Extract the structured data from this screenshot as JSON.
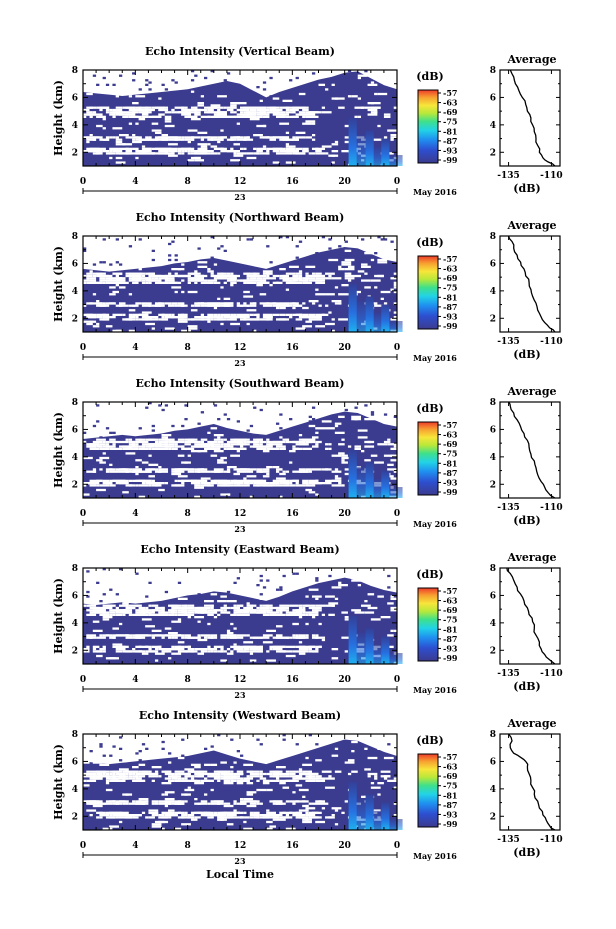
{
  "figure": {
    "x_label": "Local Time",
    "date_label": "May 2016",
    "day_label": "23"
  },
  "chart_data": [
    {
      "type": "heatmap",
      "title": "Echo Intensity (Vertical Beam)",
      "ylabel": "Height (km)",
      "xlabel": "Local Time",
      "x_ticks": [
        "0",
        "4",
        "8",
        "12",
        "16",
        "20",
        "0"
      ],
      "y_ticks": [
        "2",
        "4",
        "6",
        "8"
      ],
      "xlim": [
        0,
        24
      ],
      "ylim": [
        1,
        8
      ],
      "colorbar": {
        "unit": "(dB)",
        "ticks": [
          "-57",
          "-63",
          "-69",
          "-75",
          "-81",
          "-87",
          "-93",
          "-99"
        ]
      },
      "average": {
        "title": "Average",
        "xlabel": "(dB)",
        "x_ticks": [
          "-135",
          "-110"
        ],
        "y_ticks": [
          "2",
          "4",
          "6",
          "8"
        ],
        "xlim": [
          -140,
          -105
        ],
        "ylim": [
          1,
          8
        ],
        "profile": [
          [
            -108,
            1.0
          ],
          [
            -112,
            1.3
          ],
          [
            -115,
            1.6
          ],
          [
            -117,
            2.0
          ],
          [
            -118,
            2.5
          ],
          [
            -119,
            3.0
          ],
          [
            -120,
            3.5
          ],
          [
            -121,
            4.0
          ],
          [
            -122,
            4.5
          ],
          [
            -124,
            5.0
          ],
          [
            -125,
            5.5
          ],
          [
            -127,
            6.0
          ],
          [
            -129,
            6.5
          ],
          [
            -131,
            7.0
          ],
          [
            -132,
            7.5
          ],
          [
            -134,
            8.0
          ]
        ]
      },
      "cloud_top_km": [
        6.4,
        6.3,
        6.2,
        6.1,
        6.2,
        6.3,
        6.4,
        6.5,
        6.6,
        6.8,
        7.0,
        7.2,
        7.0,
        6.5,
        6.0,
        6.4,
        6.7,
        7.0,
        7.3,
        7.5,
        7.8,
        7.9,
        7.4,
        6.9,
        6.6
      ]
    },
    {
      "type": "heatmap",
      "title": "Echo Intensity (Northward Beam)",
      "ylabel": "Height (km)",
      "xlabel": "Local Time",
      "x_ticks": [
        "0",
        "4",
        "8",
        "12",
        "16",
        "20",
        "0"
      ],
      "y_ticks": [
        "2",
        "4",
        "6",
        "8"
      ],
      "xlim": [
        0,
        24
      ],
      "ylim": [
        1,
        8
      ],
      "colorbar": {
        "unit": "(dB)",
        "ticks": [
          "-57",
          "-63",
          "-69",
          "-75",
          "-81",
          "-87",
          "-93",
          "-99"
        ]
      },
      "average": {
        "title": "Average",
        "xlabel": "(dB)",
        "x_ticks": [
          "-135",
          "-110"
        ],
        "y_ticks": [
          "2",
          "4",
          "6",
          "8"
        ],
        "xlim": [
          -140,
          -105
        ],
        "ylim": [
          1,
          8
        ],
        "profile": [
          [
            -108,
            1.0
          ],
          [
            -111,
            1.3
          ],
          [
            -114,
            1.7
          ],
          [
            -116,
            2.1
          ],
          [
            -118,
            2.6
          ],
          [
            -119,
            3.1
          ],
          [
            -121,
            3.6
          ],
          [
            -122,
            4.1
          ],
          [
            -123,
            4.6
          ],
          [
            -125,
            5.1
          ],
          [
            -126,
            5.6
          ],
          [
            -128,
            6.1
          ],
          [
            -130,
            6.6
          ],
          [
            -132,
            7.1
          ],
          [
            -133,
            7.6
          ],
          [
            -135,
            8.0
          ]
        ]
      },
      "cloud_top_km": [
        5.6,
        5.5,
        5.4,
        5.5,
        5.6,
        5.7,
        5.8,
        6.0,
        6.1,
        6.3,
        6.4,
        6.2,
        6.0,
        5.8,
        5.6,
        5.9,
        6.2,
        6.5,
        6.8,
        7.0,
        7.2,
        7.1,
        6.7,
        6.3,
        6.1
      ]
    },
    {
      "type": "heatmap",
      "title": "Echo Intensity (Southward Beam)",
      "ylabel": "Height (km)",
      "xlabel": "Local Time",
      "x_ticks": [
        "0",
        "4",
        "8",
        "12",
        "16",
        "20",
        "0"
      ],
      "y_ticks": [
        "2",
        "4",
        "6",
        "8"
      ],
      "xlim": [
        0,
        24
      ],
      "ylim": [
        1,
        8
      ],
      "colorbar": {
        "unit": "(dB)",
        "ticks": [
          "-57",
          "-63",
          "-69",
          "-75",
          "-81",
          "-87",
          "-93",
          "-99"
        ]
      },
      "average": {
        "title": "Average",
        "xlabel": "(dB)",
        "x_ticks": [
          "-135",
          "-110"
        ],
        "y_ticks": [
          "2",
          "4",
          "6",
          "8"
        ],
        "xlim": [
          -140,
          -105
        ],
        "ylim": [
          1,
          8
        ],
        "profile": [
          [
            -108,
            1.0
          ],
          [
            -112,
            1.4
          ],
          [
            -114,
            1.8
          ],
          [
            -116,
            2.2
          ],
          [
            -118,
            2.7
          ],
          [
            -119,
            3.2
          ],
          [
            -120,
            3.7
          ],
          [
            -122,
            4.2
          ],
          [
            -123,
            4.7
          ],
          [
            -124,
            5.2
          ],
          [
            -126,
            5.7
          ],
          [
            -128,
            6.2
          ],
          [
            -130,
            6.7
          ],
          [
            -132,
            7.2
          ],
          [
            -134,
            7.7
          ],
          [
            -135,
            8.0
          ]
        ]
      },
      "cloud_top_km": [
        5.3,
        5.4,
        5.5,
        5.6,
        5.5,
        5.6,
        5.7,
        5.9,
        6.0,
        6.2,
        6.4,
        6.1,
        5.9,
        5.7,
        5.6,
        5.9,
        6.2,
        6.5,
        6.8,
        7.1,
        7.3,
        7.2,
        6.8,
        6.4,
        6.2
      ]
    },
    {
      "type": "heatmap",
      "title": "Echo Intensity (Eastward Beam)",
      "ylabel": "Height (km)",
      "xlabel": "Local Time",
      "x_ticks": [
        "0",
        "4",
        "8",
        "12",
        "16",
        "20",
        "0"
      ],
      "y_ticks": [
        "2",
        "4",
        "6",
        "8"
      ],
      "xlim": [
        0,
        24
      ],
      "ylim": [
        1,
        8
      ],
      "colorbar": {
        "unit": "(dB)",
        "ticks": [
          "-57",
          "-63",
          "-69",
          "-75",
          "-81",
          "-87",
          "-93",
          "-99"
        ]
      },
      "average": {
        "title": "Average",
        "xlabel": "(dB)",
        "x_ticks": [
          "-135",
          "-110"
        ],
        "y_ticks": [
          "2",
          "4",
          "6",
          "8"
        ],
        "xlim": [
          -140,
          -105
        ],
        "ylim": [
          1,
          8
        ],
        "profile": [
          [
            -108,
            1.0
          ],
          [
            -111,
            1.3
          ],
          [
            -114,
            1.7
          ],
          [
            -116,
            2.1
          ],
          [
            -117,
            2.6
          ],
          [
            -119,
            3.1
          ],
          [
            -120,
            3.6
          ],
          [
            -121,
            4.1
          ],
          [
            -123,
            4.6
          ],
          [
            -124,
            5.1
          ],
          [
            -126,
            5.6
          ],
          [
            -128,
            6.1
          ],
          [
            -130,
            6.6
          ],
          [
            -132,
            7.1
          ],
          [
            -134,
            7.6
          ],
          [
            -136,
            8.0
          ]
        ]
      },
      "cloud_top_km": [
        5.4,
        5.3,
        5.4,
        5.5,
        5.4,
        5.5,
        5.6,
        5.8,
        6.0,
        6.1,
        6.3,
        6.2,
        6.0,
        5.8,
        5.6,
        5.9,
        6.3,
        6.6,
        6.9,
        7.1,
        7.3,
        7.1,
        6.7,
        6.4,
        6.2
      ]
    },
    {
      "type": "heatmap",
      "title": "Echo Intensity (Westward Beam)",
      "ylabel": "Height (km)",
      "xlabel": "Local Time",
      "x_ticks": [
        "0",
        "4",
        "8",
        "12",
        "16",
        "20",
        "0"
      ],
      "y_ticks": [
        "2",
        "4",
        "6",
        "8"
      ],
      "xlim": [
        0,
        24
      ],
      "ylim": [
        1,
        8
      ],
      "colorbar": {
        "unit": "(dB)",
        "ticks": [
          "-57",
          "-63",
          "-69",
          "-75",
          "-81",
          "-87",
          "-93",
          "-99"
        ]
      },
      "average": {
        "title": "Average",
        "xlabel": "(dB)",
        "x_ticks": [
          "-135",
          "-110"
        ],
        "y_ticks": [
          "2",
          "4",
          "6",
          "8"
        ],
        "xlim": [
          -140,
          -105
        ],
        "ylim": [
          1,
          8
        ],
        "profile": [
          [
            -108,
            1.0
          ],
          [
            -111,
            1.3
          ],
          [
            -113,
            1.7
          ],
          [
            -115,
            2.1
          ],
          [
            -117,
            2.6
          ],
          [
            -118,
            3.1
          ],
          [
            -120,
            3.6
          ],
          [
            -121,
            4.1
          ],
          [
            -122,
            4.6
          ],
          [
            -123,
            5.1
          ],
          [
            -124,
            5.6
          ],
          [
            -125,
            6.0
          ],
          [
            -128,
            6.3
          ],
          [
            -132,
            6.6
          ],
          [
            -134,
            7.0
          ],
          [
            -133,
            7.5
          ],
          [
            -135,
            8.0
          ]
        ]
      },
      "cloud_top_km": [
        6.0,
        5.9,
        5.8,
        5.9,
        6.0,
        6.1,
        6.2,
        6.3,
        6.4,
        6.6,
        6.8,
        6.5,
        6.2,
        6.0,
        5.8,
        6.1,
        6.4,
        6.7,
        7.0,
        7.3,
        7.6,
        7.5,
        7.1,
        6.7,
        6.4
      ]
    }
  ]
}
